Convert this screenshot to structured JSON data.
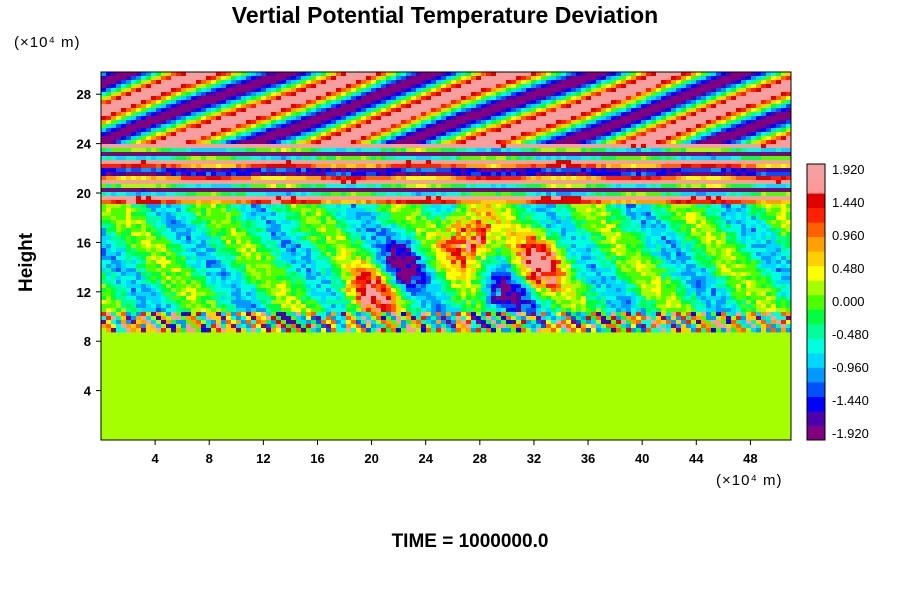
{
  "chart_data": {
    "type": "heatmap",
    "title": "Vertial Potential Temperature Deviation",
    "xlabel": "",
    "ylabel": "Height",
    "x_unit_label": "(×10⁴ m)",
    "y_unit_label": "(×10⁴ m)",
    "x_ticks": [
      4,
      8,
      12,
      16,
      20,
      24,
      28,
      32,
      36,
      40,
      44,
      48
    ],
    "y_ticks": [
      4,
      8,
      12,
      16,
      20,
      24,
      28
    ],
    "xlim": [
      0,
      51
    ],
    "ylim": [
      0,
      29.8
    ],
    "colorbar": {
      "labels": [
        "1.920",
        "1.440",
        "0.960",
        "0.480",
        "0.000",
        "-0.480",
        "-0.960",
        "-1.440",
        "-1.920"
      ],
      "min": -1.92,
      "max": 1.92,
      "colors": [
        "#800080",
        "#4b00b0",
        "#0000ff",
        "#0050ff",
        "#0099ff",
        "#00d8ff",
        "#00ffdd",
        "#00ff99",
        "#00ff40",
        "#4cff00",
        "#a6ff00",
        "#ffff00",
        "#ffd000",
        "#ffa000",
        "#ff6000",
        "#ff2000",
        "#e00000",
        "#ff9999",
        "#f4a0a0"
      ]
    },
    "features": {
      "lower_layer_top_height": 9.2,
      "lower_layer_value": 0.0,
      "stratified_bands": [
        {
          "height": 19.8,
          "value": 1.92
        },
        {
          "height": 20.4,
          "value": -1.92
        },
        {
          "height": 21.1,
          "value": 1.92
        },
        {
          "height": 21.8,
          "value": -1.92
        },
        {
          "height": 22.6,
          "value": 1.92
        },
        {
          "height": 23.3,
          "value": -1.92
        }
      ],
      "convective_plumes_x": [
        20,
        22,
        27,
        30,
        32
      ]
    }
  },
  "footer": {
    "time_label": "TIME = 1000000.0"
  }
}
